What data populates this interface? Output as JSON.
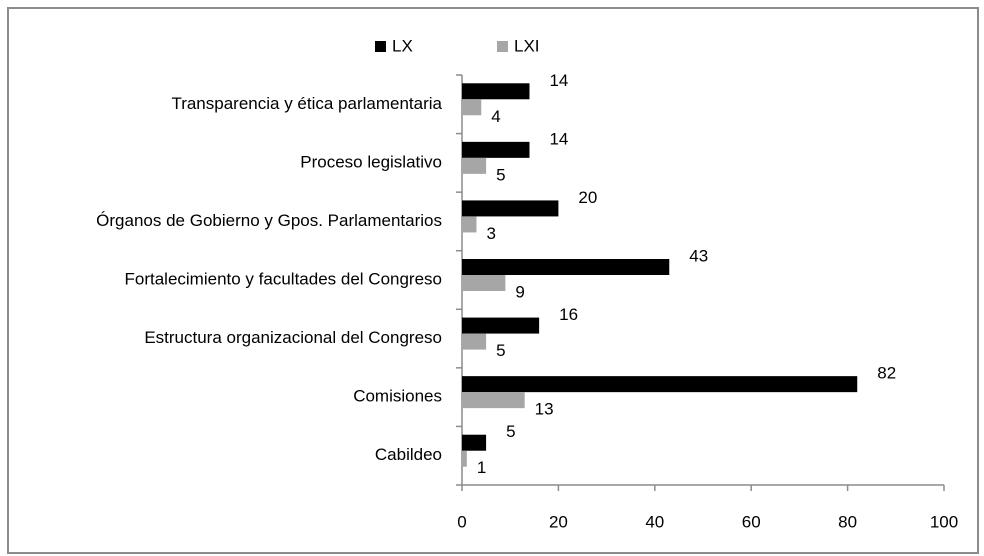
{
  "chart_data": {
    "type": "hbar",
    "categories": [
      "Transparencia y ética parlamentaria",
      "Proceso legislativo",
      "Órganos de Gobierno y Gpos. Parlamentarios",
      "Fortalecimiento y facultades del Congreso",
      "Estructura organizacional del Congreso",
      "Comisiones",
      "Cabildeo"
    ],
    "series": [
      {
        "name": "LX",
        "color": "#000000",
        "values": [
          14,
          14,
          20,
          43,
          16,
          82,
          5
        ]
      },
      {
        "name": "LXI",
        "color": "#a6a6a6",
        "values": [
          4,
          5,
          3,
          9,
          5,
          13,
          1
        ]
      }
    ],
    "xlim": [
      0,
      100
    ],
    "xticks": [
      0,
      20,
      40,
      60,
      80,
      100
    ],
    "legend": "top"
  }
}
